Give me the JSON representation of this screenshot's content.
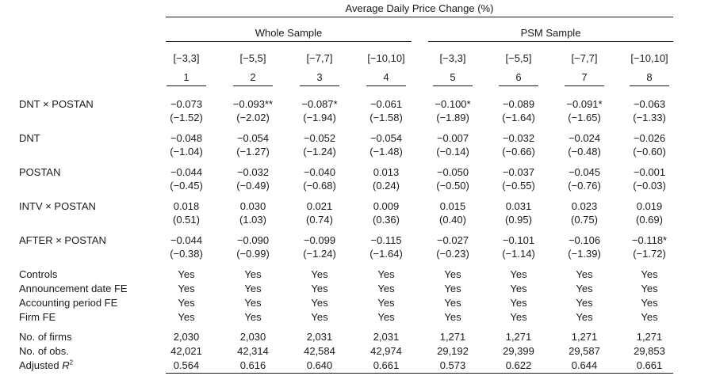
{
  "header": {
    "main_title": "Average Daily Price Change (%)",
    "groups": [
      "Whole Sample",
      "PSM Sample"
    ],
    "windows": [
      "[−3,3]",
      "[−5,5]",
      "[−7,7]",
      "[−10,10]",
      "[−3,3]",
      "[−5,5]",
      "[−7,7]",
      "[−10,10]"
    ],
    "col_numbers": [
      "1",
      "2",
      "3",
      "4",
      "5",
      "6",
      "7",
      "8"
    ]
  },
  "coef_rows": [
    {
      "label": "DNT × POSTAN",
      "coef": [
        "−0.073",
        "−0.093**",
        "−0.087*",
        "−0.061",
        "−0.100*",
        "−0.089",
        "−0.091*",
        "−0.063"
      ],
      "tstat": [
        "(−1.52)",
        "(−2.02)",
        "(−1.94)",
        "(−1.58)",
        "(−1.89)",
        "(−1.64)",
        "(−1.65)",
        "(−1.33)"
      ]
    },
    {
      "label": "DNT",
      "coef": [
        "−0.048",
        "−0.054",
        "−0.052",
        "−0.054",
        "−0.007",
        "−0.032",
        "−0.024",
        "−0.026"
      ],
      "tstat": [
        "(−1.04)",
        "(−1.27)",
        "(−1.24)",
        "(−1.48)",
        "(−0.14)",
        "(−0.66)",
        "(−0.48)",
        "(−0.60)"
      ]
    },
    {
      "label": "POSTAN",
      "coef": [
        "−0.044",
        "−0.032",
        "−0.040",
        "0.013",
        "−0.050",
        "−0.037",
        "−0.045",
        "−0.001"
      ],
      "tstat": [
        "(−0.45)",
        "(−0.49)",
        "(−0.68)",
        "(0.24)",
        "(−0.50)",
        "(−0.55)",
        "(−0.76)",
        "(−0.03)"
      ]
    },
    {
      "label": "INTV × POSTAN",
      "coef": [
        "0.018",
        "0.030",
        "0.021",
        "0.009",
        "0.015",
        "0.031",
        "0.023",
        "0.019"
      ],
      "tstat": [
        "(0.51)",
        "(1.03)",
        "(0.74)",
        "(0.36)",
        "(0.40)",
        "(0.95)",
        "(0.75)",
        "(0.69)"
      ]
    },
    {
      "label": "AFTER × POSTAN",
      "coef": [
        "−0.044",
        "−0.090",
        "−0.099",
        "−0.115",
        "−0.027",
        "−0.101",
        "−0.106",
        "−0.118*"
      ],
      "tstat": [
        "(−0.38)",
        "(−0.99)",
        "(−1.24)",
        "(−1.64)",
        "(−0.23)",
        "(−1.14)",
        "(−1.39)",
        "(−1.72)"
      ]
    }
  ],
  "fe_rows": [
    {
      "label": "Controls",
      "values": [
        "Yes",
        "Yes",
        "Yes",
        "Yes",
        "Yes",
        "Yes",
        "Yes",
        "Yes"
      ]
    },
    {
      "label": "Announcement date FE",
      "values": [
        "Yes",
        "Yes",
        "Yes",
        "Yes",
        "Yes",
        "Yes",
        "Yes",
        "Yes"
      ]
    },
    {
      "label": "Accounting period FE",
      "values": [
        "Yes",
        "Yes",
        "Yes",
        "Yes",
        "Yes",
        "Yes",
        "Yes",
        "Yes"
      ]
    },
    {
      "label": "Firm FE",
      "values": [
        "Yes",
        "Yes",
        "Yes",
        "Yes",
        "Yes",
        "Yes",
        "Yes",
        "Yes"
      ]
    }
  ],
  "stat_rows": [
    {
      "label": "No. of firms",
      "values": [
        "2,030",
        "2,030",
        "2,031",
        "2,031",
        "1,271",
        "1,271",
        "1,271",
        "1,271"
      ]
    },
    {
      "label": "No. of obs.",
      "values": [
        "42,021",
        "42,314",
        "42,584",
        "42,974",
        "29,192",
        "29,399",
        "29,587",
        "29,853"
      ]
    },
    {
      "label_main": "Adjusted ",
      "label_italic": "R",
      "label_sup": "2",
      "values": [
        "0.564",
        "0.616",
        "0.640",
        "0.661",
        "0.573",
        "0.622",
        "0.644",
        "0.661"
      ]
    }
  ]
}
